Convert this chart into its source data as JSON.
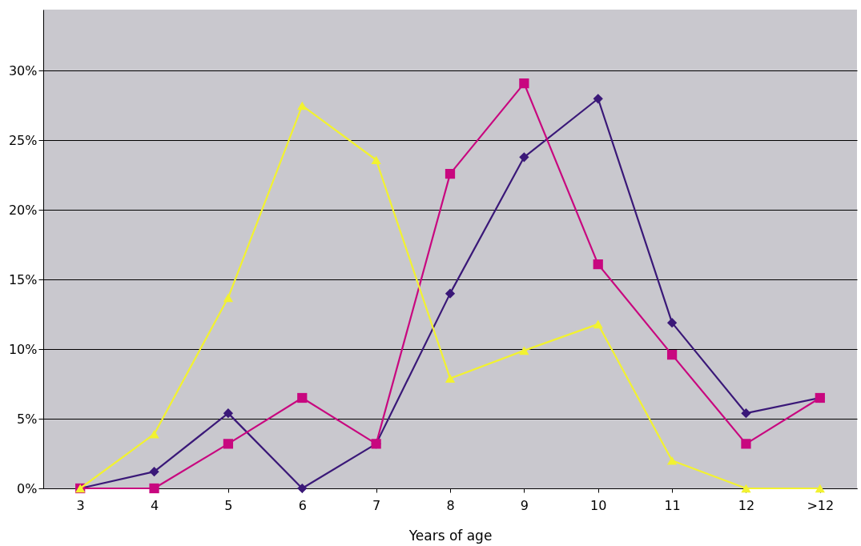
{
  "chart_data": {
    "type": "line",
    "xlabel": "Years of age",
    "categories": [
      "3",
      "4",
      "5",
      "6",
      "7",
      "8",
      "9",
      "10",
      "11",
      "12",
      ">12"
    ],
    "series": [
      {
        "color": "#3a1878",
        "marker": "diamond",
        "values": [
          0,
          1.2,
          5.4,
          0,
          3.2,
          14.0,
          23.8,
          28.0,
          11.9,
          5.4,
          6.5
        ]
      },
      {
        "color": "#c8077f",
        "marker": "square",
        "values": [
          0,
          0,
          3.2,
          6.5,
          3.2,
          22.6,
          29.1,
          16.1,
          9.6,
          3.2,
          6.5
        ]
      },
      {
        "color": "#f2f230",
        "marker": "triangle",
        "values": [
          0,
          3.9,
          13.7,
          27.5,
          23.6,
          7.9,
          9.9,
          11.8,
          2.0,
          0,
          0
        ]
      }
    ],
    "ylim": [
      0,
      34.4
    ],
    "yticks": [
      {
        "value": 0,
        "label": "0%"
      },
      {
        "value": 5,
        "label": "5%"
      },
      {
        "value": 10,
        "label": "10%"
      },
      {
        "value": 15,
        "label": "15%"
      },
      {
        "value": 20,
        "label": "20%"
      },
      {
        "value": 25,
        "label": "25%"
      },
      {
        "value": 30,
        "label": "30%"
      }
    ],
    "grid": "y"
  }
}
